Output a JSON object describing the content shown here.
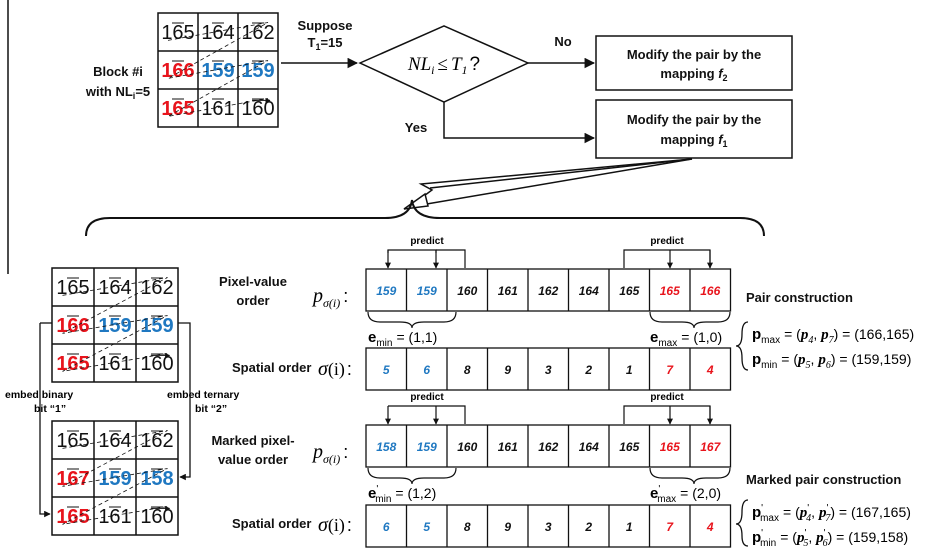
{
  "colors": {
    "red": "#e8141c",
    "blue": "#1f78c1",
    "black": "#111111"
  },
  "block": {
    "title_line1": "Block #i",
    "title_line2": "with NL",
    "title_sub": "i",
    "title_tail": "=5",
    "grid": [
      [
        {
          "v": "165",
          "c": "black"
        },
        {
          "v": "164",
          "c": "black"
        },
        {
          "v": "162",
          "c": "black"
        }
      ],
      [
        {
          "v": "166",
          "c": "red"
        },
        {
          "v": "159",
          "c": "blue"
        },
        {
          "v": "159",
          "c": "blue"
        }
      ],
      [
        {
          "v": "165",
          "c": "red"
        },
        {
          "v": "161",
          "c": "black"
        },
        {
          "v": "160",
          "c": "black"
        }
      ]
    ]
  },
  "marked_grid": [
    [
      {
        "v": "165",
        "c": "black"
      },
      {
        "v": "164",
        "c": "black"
      },
      {
        "v": "162",
        "c": "black"
      }
    ],
    [
      {
        "v": "167",
        "c": "red"
      },
      {
        "v": "159",
        "c": "blue"
      },
      {
        "v": "158",
        "c": "blue"
      }
    ],
    [
      {
        "v": "165",
        "c": "red"
      },
      {
        "v": "161",
        "c": "black"
      },
      {
        "v": "160",
        "c": "black"
      }
    ]
  ],
  "flow": {
    "suppose_line1": "Suppose",
    "suppose_line2": "T",
    "suppose_sub": "1",
    "suppose_tail": "=15",
    "decision_nl": "NL",
    "decision_sub": "i",
    "decision_le": "≤",
    "decision_t": "T",
    "decision_tsub": "1",
    "decision_q": "?",
    "no_label": "No",
    "yes_label": "Yes",
    "box_f2_line1": "Modify the pair by the",
    "box_f2_line2": "mapping ",
    "box_f2_func": "f",
    "box_f2_sub": "2",
    "box_f1_line1": "Modify the pair by the",
    "box_f1_line2": "mapping ",
    "box_f1_func": "f",
    "box_f1_sub": "1"
  },
  "rows": {
    "pixel_value": {
      "label1": "Pixel-value",
      "label2": "order",
      "cells": [
        {
          "v": "159",
          "c": "blue"
        },
        {
          "v": "159",
          "c": "blue"
        },
        {
          "v": "160",
          "c": "black"
        },
        {
          "v": "161",
          "c": "black"
        },
        {
          "v": "162",
          "c": "black"
        },
        {
          "v": "164",
          "c": "black"
        },
        {
          "v": "165",
          "c": "black"
        },
        {
          "v": "165",
          "c": "red"
        },
        {
          "v": "166",
          "c": "red"
        }
      ]
    },
    "spatial_1": {
      "label": "Spatial order",
      "cells": [
        {
          "v": "5",
          "c": "blue"
        },
        {
          "v": "6",
          "c": "blue"
        },
        {
          "v": "8",
          "c": "black"
        },
        {
          "v": "9",
          "c": "black"
        },
        {
          "v": "3",
          "c": "black"
        },
        {
          "v": "2",
          "c": "black"
        },
        {
          "v": "1",
          "c": "black"
        },
        {
          "v": "7",
          "c": "red"
        },
        {
          "v": "4",
          "c": "red"
        }
      ]
    },
    "marked_pixel_value": {
      "label1": "Marked pixel-",
      "label2": "value order",
      "cells": [
        {
          "v": "158",
          "c": "blue"
        },
        {
          "v": "159",
          "c": "blue"
        },
        {
          "v": "160",
          "c": "black"
        },
        {
          "v": "161",
          "c": "black"
        },
        {
          "v": "162",
          "c": "black"
        },
        {
          "v": "164",
          "c": "black"
        },
        {
          "v": "165",
          "c": "black"
        },
        {
          "v": "165",
          "c": "red"
        },
        {
          "v": "167",
          "c": "red"
        }
      ]
    },
    "spatial_2": {
      "label": "Spatial order",
      "cells": [
        {
          "v": "6",
          "c": "blue"
        },
        {
          "v": "5",
          "c": "blue"
        },
        {
          "v": "8",
          "c": "black"
        },
        {
          "v": "9",
          "c": "black"
        },
        {
          "v": "3",
          "c": "black"
        },
        {
          "v": "2",
          "c": "black"
        },
        {
          "v": "1",
          "c": "black"
        },
        {
          "v": "7",
          "c": "red"
        },
        {
          "v": "4",
          "c": "red"
        }
      ]
    }
  },
  "math": {
    "p": "p",
    "sigma_sub": "σ(i)",
    "sigma": "σ",
    "sigma_arg": "(i)",
    "colon": ":",
    "predict": "predict",
    "e_min_1": "= (1,1)",
    "e_max_1": "= (1,0)",
    "e_min_2": "= (1,2)",
    "e_max_2": "= (2,0)",
    "e_bold": "e",
    "min": "min",
    "max": "max",
    "prime": "'"
  },
  "pairs": {
    "title": "Pair construction",
    "pmax_val": "= (166,165)",
    "pmin_val": "= (159,159)",
    "marked_title": "Marked pair construction",
    "pmax_marked_val": "= (167,165)",
    "pmin_marked_val": "= (159,158)",
    "idx_max_a": "4",
    "idx_max_b": "7",
    "idx_min_a": "5",
    "idx_min_b": "6"
  },
  "embed": {
    "binary_line1": "embed  binary",
    "binary_line2": "bit “1”",
    "ternary_line1": "embed ternary",
    "ternary_line2": "bit “2”"
  }
}
